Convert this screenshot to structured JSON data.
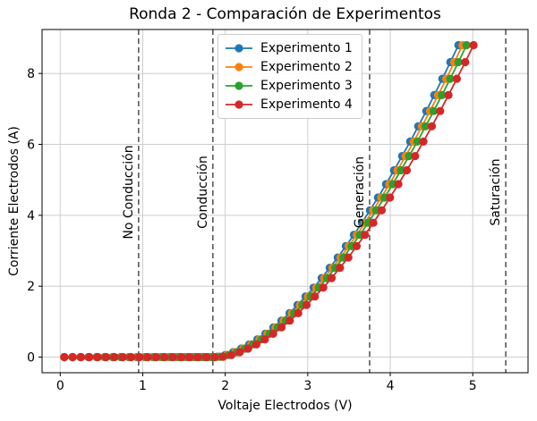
{
  "chart_data": {
    "type": "line",
    "title": "Ronda 2 - Comparación de Experimentos",
    "xlabel": "Voltaje Electrodos (V)",
    "ylabel": "Corriente Electrodos (A)",
    "xlim": [
      -0.22,
      5.67
    ],
    "ylim": [
      -0.44,
      9.24
    ],
    "xticks": [
      0,
      1,
      2,
      3,
      4,
      5
    ],
    "yticks": [
      0,
      2,
      4,
      6,
      8
    ],
    "grid": true,
    "grid_color": "#cdcdcd",
    "legend_position": "upper center",
    "marker": "o",
    "x_base": [
      0.05,
      0.15,
      0.25,
      0.35,
      0.45,
      0.55,
      0.65,
      0.75,
      0.85,
      0.95,
      1.05,
      1.15,
      1.25,
      1.35,
      1.45,
      1.55,
      1.65,
      1.75,
      1.85,
      1.95,
      2.05,
      2.15,
      2.25,
      2.35,
      2.45,
      2.55,
      2.65,
      2.75,
      2.85,
      2.95,
      3.05,
      3.15,
      3.25,
      3.35,
      3.45,
      3.55,
      3.65,
      3.75,
      3.85,
      3.95,
      4.05,
      4.15,
      4.25,
      4.35,
      4.45,
      4.55,
      4.65,
      4.75,
      4.85,
      4.95
    ],
    "base_values": [
      0,
      0,
      0,
      0,
      0,
      0,
      0,
      0,
      0,
      0,
      0,
      0,
      0,
      0,
      0,
      0,
      0,
      0,
      0,
      0.01,
      0.06,
      0.14,
      0.24,
      0.36,
      0.5,
      0.66,
      0.84,
      1.03,
      1.24,
      1.47,
      1.71,
      1.96,
      2.23,
      2.52,
      2.81,
      3.13,
      3.45,
      3.79,
      4.14,
      4.5,
      4.88,
      5.27,
      5.67,
      6.08,
      6.51,
      6.94,
      7.39,
      7.85,
      8.32,
      8.8
    ],
    "series": [
      {
        "name": "Experimento 1",
        "color": "#1f77b4",
        "x_scale": 0.975
      },
      {
        "name": "Experimento 2",
        "color": "#ff7f0e",
        "x_scale": 0.985
      },
      {
        "name": "Experimento 3",
        "color": "#2ca02c",
        "x_scale": 0.995
      },
      {
        "name": "Experimento 4",
        "color": "#d62728",
        "x_scale": 1.012
      }
    ],
    "vlines": [
      {
        "label": "No Conducción",
        "x": 0.95
      },
      {
        "label": "Conducción",
        "x": 1.85
      },
      {
        "label": "Generación",
        "x": 3.75
      },
      {
        "label": "Saturación",
        "x": 5.4
      }
    ],
    "vline_color": "#595959"
  }
}
